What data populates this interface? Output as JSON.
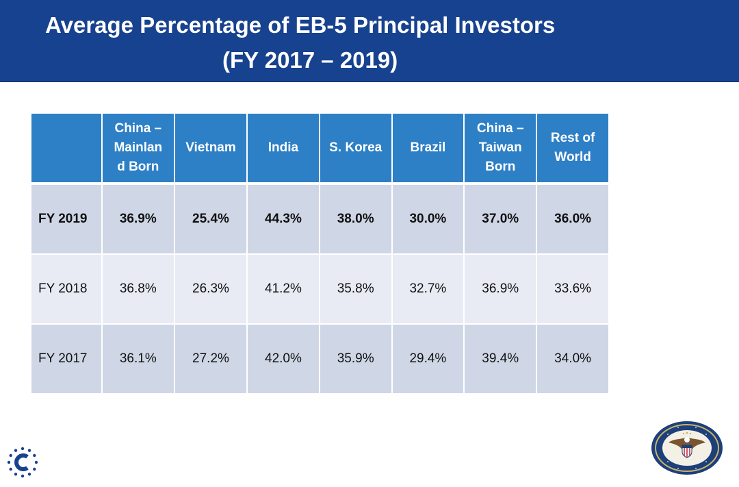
{
  "title": {
    "line1": "Average Percentage of EB-5 Principal Investors",
    "line2": "(FY 2017 – 2019)"
  },
  "table": {
    "headers": [
      "",
      "China –\nMainlan\nd Born",
      "Vietnam",
      "India",
      "S. Korea",
      "Brazil",
      "China –\nTaiwan\nBorn",
      "Rest of\nWorld"
    ],
    "rows": [
      {
        "label": "FY 2019",
        "values": [
          "36.9%",
          "25.4%",
          "44.3%",
          "38.0%",
          "30.0%",
          "37.0%",
          "36.0%"
        ]
      },
      {
        "label": "FY 2018",
        "values": [
          "36.8%",
          "26.3%",
          "41.2%",
          "35.8%",
          "32.7%",
          "36.9%",
          "33.6%"
        ]
      },
      {
        "label": "FY 2017",
        "values": [
          "36.1%",
          "27.2%",
          "42.0%",
          "35.9%",
          "29.4%",
          "39.4%",
          "34.0%"
        ]
      }
    ]
  },
  "colors": {
    "title_bar": "#17428f",
    "header": "#2d7fc6",
    "row_dark": "#cfd6e6",
    "row_light": "#e8ebf3"
  },
  "icons": {
    "corner_logo": "c-logo-icon",
    "seal": "department-of-state-seal-icon"
  }
}
